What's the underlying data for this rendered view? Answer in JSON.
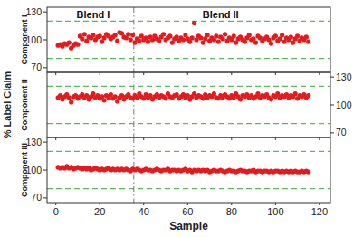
{
  "chart_data": [
    {
      "type": "scatter",
      "ylabel": "Component I",
      "annotations": [
        {
          "text": "Blend I",
          "x": 17
        },
        {
          "text": "Blend II",
          "x": 75
        }
      ],
      "reference_lines": {
        "x": [
          35.5
        ],
        "y": [
          80,
          120
        ]
      },
      "color": "#e41a1c",
      "marker": "circle",
      "grid": false,
      "tick_labels": "y",
      "xlim": [
        -4,
        125
      ],
      "xticks": [
        0,
        20,
        40,
        60,
        80,
        100,
        120
      ],
      "ylim": [
        65,
        135
      ],
      "yticks": [
        70,
        100,
        130
      ],
      "x": [
        1,
        2,
        3,
        4,
        5,
        6,
        7,
        8,
        9,
        10,
        11,
        12,
        13,
        14,
        15,
        16,
        17,
        18,
        19,
        20,
        21,
        22,
        23,
        24,
        25,
        26,
        27,
        28,
        29,
        30,
        31,
        32,
        33,
        34,
        35,
        36,
        37,
        38,
        39,
        40,
        41,
        42,
        43,
        44,
        45,
        46,
        47,
        48,
        49,
        50,
        51,
        52,
        53,
        54,
        55,
        56,
        57,
        58,
        59,
        60,
        61,
        62,
        63,
        64,
        65,
        66,
        67,
        68,
        69,
        70,
        71,
        72,
        73,
        74,
        75,
        76,
        77,
        78,
        79,
        80,
        81,
        82,
        83,
        84,
        85,
        86,
        87,
        88,
        89,
        90,
        91,
        92,
        93,
        94,
        95,
        96,
        97,
        98,
        99,
        100,
        101,
        102,
        103,
        104,
        105,
        106,
        107,
        108,
        109,
        110,
        111,
        112,
        113,
        114,
        115
      ],
      "values": [
        94,
        95,
        93,
        96,
        95,
        97,
        91,
        94,
        96,
        95,
        104,
        101,
        106,
        99,
        103,
        102,
        105,
        100,
        103,
        104,
        98,
        102,
        106,
        104,
        101,
        103,
        105,
        99,
        108,
        107,
        103,
        102,
        106,
        100,
        105,
        97,
        101,
        99,
        104,
        100,
        102,
        98,
        103,
        100,
        104,
        101,
        99,
        103,
        106,
        100,
        102,
        104,
        97,
        101,
        103,
        99,
        102,
        100,
        105,
        101,
        98,
        102,
        118,
        100,
        104,
        102,
        97,
        101,
        105,
        99,
        102,
        100,
        104,
        98,
        103,
        101,
        106,
        99,
        102,
        100,
        104,
        97,
        101,
        103,
        100,
        98,
        102,
        105,
        100,
        101,
        97,
        104,
        102,
        99,
        101,
        103,
        100,
        96,
        102,
        104,
        99,
        101,
        105,
        98,
        102,
        100,
        103,
        97,
        101,
        104,
        99,
        102,
        100,
        103,
        98
      ]
    },
    {
      "type": "scatter",
      "ylabel": "Component II",
      "ylabel_outer": "% Label Claim",
      "reference_lines": {
        "x": [
          35.5
        ],
        "y": [
          80,
          120
        ]
      },
      "color": "#e41a1c",
      "marker": "circle",
      "grid": false,
      "tick_labels": "y",
      "xlim": [
        -4,
        125
      ],
      "xticks": [
        0,
        20,
        40,
        60,
        80,
        100,
        120
      ],
      "ylim": [
        65,
        135
      ],
      "yticks": [
        70,
        100,
        130
      ],
      "x": [
        1,
        2,
        3,
        4,
        5,
        6,
        7,
        8,
        9,
        10,
        11,
        12,
        13,
        14,
        15,
        16,
        17,
        18,
        19,
        20,
        21,
        22,
        23,
        24,
        25,
        26,
        27,
        28,
        29,
        30,
        31,
        32,
        33,
        34,
        35,
        36,
        37,
        38,
        39,
        40,
        41,
        42,
        43,
        44,
        45,
        46,
        47,
        48,
        49,
        50,
        51,
        52,
        53,
        54,
        55,
        56,
        57,
        58,
        59,
        60,
        61,
        62,
        63,
        64,
        65,
        66,
        67,
        68,
        69,
        70,
        71,
        72,
        73,
        74,
        75,
        76,
        77,
        78,
        79,
        80,
        81,
        82,
        83,
        84,
        85,
        86,
        87,
        88,
        89,
        90,
        91,
        92,
        93,
        94,
        95,
        96,
        97,
        98,
        99,
        100,
        101,
        102,
        103,
        104,
        105,
        106,
        107,
        108,
        109,
        110,
        111,
        112,
        113,
        114,
        115
      ],
      "values": [
        108,
        110,
        106,
        109,
        111,
        108,
        103,
        109,
        110,
        107,
        109,
        111,
        108,
        110,
        106,
        109,
        112,
        108,
        110,
        107,
        109,
        105,
        110,
        108,
        111,
        107,
        109,
        104,
        108,
        110,
        106,
        109,
        111,
        108,
        107,
        110,
        108,
        112,
        109,
        107,
        111,
        108,
        110,
        106,
        109,
        111,
        108,
        110,
        109,
        107,
        112,
        109,
        108,
        110,
        111,
        107,
        109,
        111,
        108,
        110,
        106,
        109,
        112,
        108,
        110,
        109,
        107,
        111,
        108,
        110,
        109,
        112,
        108,
        107,
        110,
        108,
        111,
        109,
        107,
        110,
        108,
        112,
        109,
        106,
        110,
        109,
        111,
        108,
        110,
        107,
        109,
        112,
        108,
        110,
        109,
        111,
        108,
        106,
        110,
        109,
        112,
        108,
        110,
        109,
        111,
        108,
        110,
        109,
        112,
        107,
        110,
        109,
        111,
        108,
        110
      ]
    },
    {
      "type": "scatter",
      "ylabel": "Component III",
      "xlabel": "Sample",
      "reference_lines": {
        "x": [
          35.5
        ],
        "y": [
          80,
          120
        ]
      },
      "color": "#e41a1c",
      "marker": "circle",
      "grid": false,
      "xlim": [
        -4,
        125
      ],
      "xticks": [
        0,
        20,
        40,
        60,
        80,
        100,
        120
      ],
      "ylim": [
        65,
        135
      ],
      "yticks": [
        70,
        100,
        130
      ],
      "x": [
        1,
        2,
        3,
        4,
        5,
        6,
        7,
        8,
        9,
        10,
        11,
        12,
        13,
        14,
        15,
        16,
        17,
        18,
        19,
        20,
        21,
        22,
        23,
        24,
        25,
        26,
        27,
        28,
        29,
        30,
        31,
        32,
        33,
        34,
        35,
        36,
        37,
        38,
        39,
        40,
        41,
        42,
        43,
        44,
        45,
        46,
        47,
        48,
        49,
        50,
        51,
        52,
        53,
        54,
        55,
        56,
        57,
        58,
        59,
        60,
        61,
        62,
        63,
        64,
        65,
        66,
        67,
        68,
        69,
        70,
        71,
        72,
        73,
        74,
        75,
        76,
        77,
        78,
        79,
        80,
        81,
        82,
        83,
        84,
        85,
        86,
        87,
        88,
        89,
        90,
        91,
        92,
        93,
        94,
        95,
        96,
        97,
        98,
        99,
        100,
        101,
        102,
        103,
        104,
        105,
        106,
        107,
        108,
        109,
        110,
        111,
        112,
        113,
        114,
        115
      ],
      "values": [
        103,
        102,
        103,
        102,
        104,
        102,
        103,
        101,
        102,
        103,
        102,
        101,
        102,
        101,
        102,
        100,
        101,
        102,
        101,
        100,
        101,
        100,
        101,
        102,
        100,
        101,
        100,
        101,
        100,
        101,
        100,
        101,
        100,
        99,
        101,
        100,
        101,
        100,
        99,
        100,
        101,
        100,
        100,
        99,
        100,
        101,
        100,
        99,
        100,
        100,
        101,
        99,
        100,
        100,
        99,
        100,
        99,
        100,
        101,
        99,
        100,
        98,
        100,
        99,
        100,
        99,
        100,
        99,
        100,
        98,
        99,
        100,
        99,
        99,
        100,
        99,
        98,
        99,
        100,
        99,
        99,
        98,
        99,
        100,
        99,
        99,
        98,
        99,
        99,
        100,
        98,
        99,
        99,
        98,
        99,
        99,
        98,
        99,
        98,
        99,
        99,
        98,
        99,
        98,
        99,
        98,
        99,
        98,
        99,
        98,
        98,
        99,
        98,
        99,
        98
      ]
    }
  ]
}
